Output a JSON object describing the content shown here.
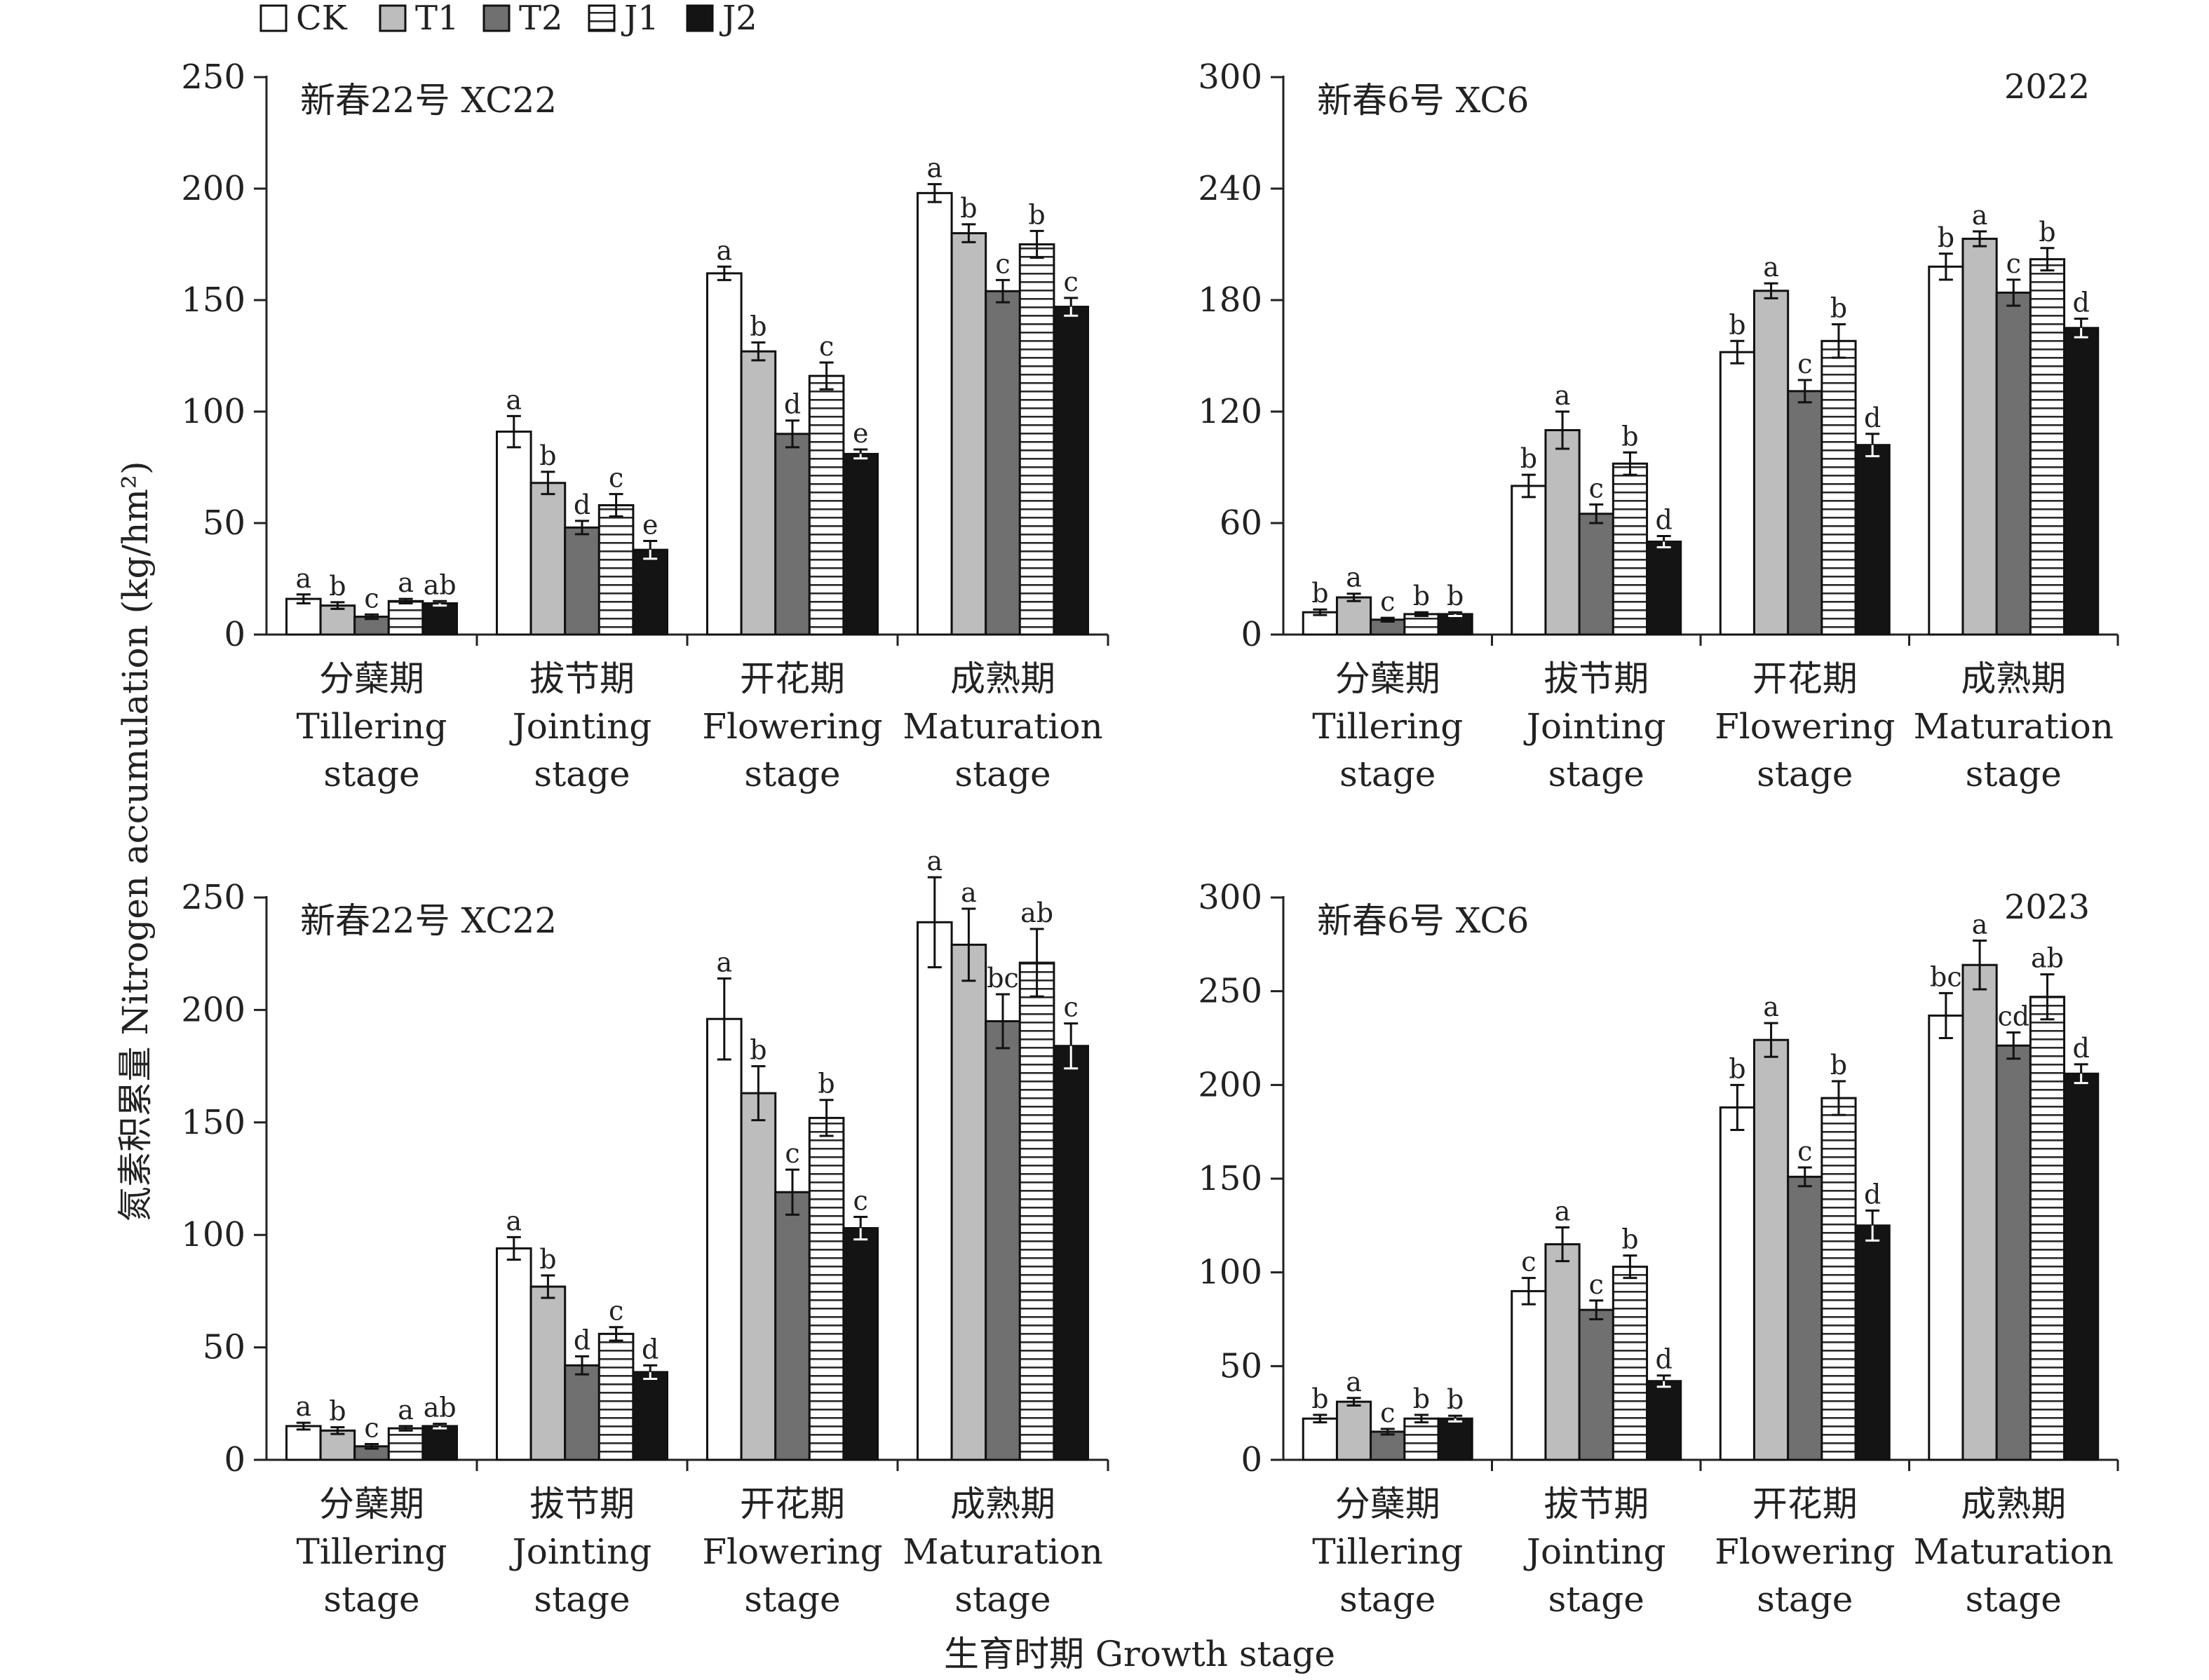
{
  "figure": {
    "ylabel": "氮素积累量 Nitrogen accumulation (kg/hm²)",
    "xlabel": "生育时期 Growth stage"
  },
  "legend": {
    "items": [
      {
        "label": "CK",
        "fill": "#ffffff",
        "pattern": "none"
      },
      {
        "label": "T1",
        "fill": "#bdbdbd",
        "pattern": "none"
      },
      {
        "label": "T2",
        "fill": "#707070",
        "pattern": "none"
      },
      {
        "label": "J1",
        "fill": "#ffffff",
        "pattern": "horizontal-stripes"
      },
      {
        "label": "J2",
        "fill": "#141414",
        "pattern": "none"
      }
    ]
  },
  "chart_data": [
    {
      "type": "bar",
      "panel_label": "新春22号 XC22",
      "year_label": "",
      "ylim": [
        0,
        250
      ],
      "yticks": [
        0,
        50,
        100,
        150,
        200,
        250
      ],
      "categories": [
        [
          "分蘖期",
          "Tillering",
          "stage"
        ],
        [
          "拔节期",
          "Jointing",
          "stage"
        ],
        [
          "开花期",
          "Flowering",
          "stage"
        ],
        [
          "成熟期",
          "Maturation",
          "stage"
        ]
      ],
      "series": [
        {
          "name": "CK",
          "values": [
            16,
            91,
            162,
            198
          ],
          "errors": [
            2,
            7,
            3,
            4
          ],
          "letters": [
            "a",
            "a",
            "a",
            "a"
          ]
        },
        {
          "name": "T1",
          "values": [
            13,
            68,
            127,
            180
          ],
          "errors": [
            1.5,
            5,
            4,
            4
          ],
          "letters": [
            "b",
            "b",
            "b",
            "b"
          ]
        },
        {
          "name": "T2",
          "values": [
            8,
            48,
            90,
            154
          ],
          "errors": [
            1,
            3,
            6,
            5
          ],
          "letters": [
            "c",
            "d",
            "d",
            "c"
          ]
        },
        {
          "name": "J1",
          "values": [
            15,
            58,
            116,
            175
          ],
          "errors": [
            1,
            5,
            6,
            6
          ],
          "letters": [
            "a",
            "c",
            "c",
            "b"
          ]
        },
        {
          "name": "J2",
          "values": [
            14,
            38,
            81,
            147
          ],
          "errors": [
            1,
            4,
            2,
            4
          ],
          "letters": [
            "ab",
            "e",
            "e",
            "c"
          ]
        }
      ]
    },
    {
      "type": "bar",
      "panel_label": "新春6号 XC6",
      "year_label": "2022",
      "ylim": [
        0,
        300
      ],
      "yticks": [
        0,
        60,
        120,
        180,
        240,
        300
      ],
      "categories": [
        [
          "分蘖期",
          "Tillering",
          "stage"
        ],
        [
          "拔节期",
          "Jointing",
          "stage"
        ],
        [
          "开花期",
          "Flowering",
          "stage"
        ],
        [
          "成熟期",
          "Maturation",
          "stage"
        ]
      ],
      "series": [
        {
          "name": "CK",
          "values": [
            12,
            80,
            152,
            198
          ],
          "errors": [
            1.5,
            6,
            6,
            7
          ],
          "letters": [
            "b",
            "b",
            "b",
            "b"
          ]
        },
        {
          "name": "T1",
          "values": [
            20,
            110,
            185,
            213
          ],
          "errors": [
            2,
            10,
            4,
            4
          ],
          "letters": [
            "a",
            "a",
            "a",
            "a"
          ]
        },
        {
          "name": "T2",
          "values": [
            8,
            65,
            131,
            184
          ],
          "errors": [
            1,
            5,
            6,
            7
          ],
          "letters": [
            "c",
            "c",
            "c",
            "c"
          ]
        },
        {
          "name": "J1",
          "values": [
            11,
            92,
            158,
            202
          ],
          "errors": [
            1,
            6,
            9,
            6
          ],
          "letters": [
            "b",
            "b",
            "b",
            "b"
          ]
        },
        {
          "name": "J2",
          "values": [
            11,
            50,
            102,
            165
          ],
          "errors": [
            1,
            3,
            6,
            5
          ],
          "letters": [
            "b",
            "d",
            "d",
            "d"
          ]
        }
      ]
    },
    {
      "type": "bar",
      "panel_label": "新春22号 XC22",
      "year_label": "",
      "ylim": [
        0,
        250
      ],
      "yticks": [
        0,
        50,
        100,
        150,
        200,
        250
      ],
      "categories": [
        [
          "分蘖期",
          "Tillering",
          "stage"
        ],
        [
          "拔节期",
          "Jointing",
          "stage"
        ],
        [
          "开花期",
          "Flowering",
          "stage"
        ],
        [
          "成熟期",
          "Maturation",
          "stage"
        ]
      ],
      "series": [
        {
          "name": "CK",
          "values": [
            15,
            94,
            196,
            239
          ],
          "errors": [
            1.5,
            5,
            18,
            20
          ],
          "letters": [
            "a",
            "a",
            "a",
            "a"
          ]
        },
        {
          "name": "T1",
          "values": [
            13,
            77,
            163,
            229
          ],
          "errors": [
            1.5,
            5,
            12,
            16
          ],
          "letters": [
            "b",
            "b",
            "b",
            "a"
          ]
        },
        {
          "name": "T2",
          "values": [
            6,
            42,
            119,
            195
          ],
          "errors": [
            1,
            4,
            10,
            12
          ],
          "letters": [
            "c",
            "d",
            "c",
            "bc"
          ]
        },
        {
          "name": "J1",
          "values": [
            14,
            56,
            152,
            221
          ],
          "errors": [
            1,
            3,
            8,
            15
          ],
          "letters": [
            "a",
            "c",
            "b",
            "ab"
          ]
        },
        {
          "name": "J2",
          "values": [
            15,
            39,
            103,
            184
          ],
          "errors": [
            1,
            3,
            5,
            10
          ],
          "letters": [
            "ab",
            "d",
            "c",
            "c"
          ]
        }
      ]
    },
    {
      "type": "bar",
      "panel_label": "新春6号 XC6",
      "year_label": "2023",
      "ylim": [
        0,
        300
      ],
      "yticks": [
        0,
        50,
        100,
        150,
        200,
        250,
        300
      ],
      "categories": [
        [
          "分蘖期",
          "Tillering",
          "stage"
        ],
        [
          "拔节期",
          "Jointing",
          "stage"
        ],
        [
          "开花期",
          "Flowering",
          "stage"
        ],
        [
          "成熟期",
          "Maturation",
          "stage"
        ]
      ],
      "series": [
        {
          "name": "CK",
          "values": [
            22,
            90,
            188,
            237
          ],
          "errors": [
            2,
            7,
            12,
            12
          ],
          "letters": [
            "b",
            "c",
            "b",
            "bc"
          ]
        },
        {
          "name": "T1",
          "values": [
            31,
            115,
            224,
            264
          ],
          "errors": [
            2,
            9,
            9,
            13
          ],
          "letters": [
            "a",
            "a",
            "a",
            "a"
          ]
        },
        {
          "name": "T2",
          "values": [
            15,
            80,
            151,
            221
          ],
          "errors": [
            1.5,
            5,
            5,
            7
          ],
          "letters": [
            "c",
            "c",
            "c",
            "cd"
          ]
        },
        {
          "name": "J1",
          "values": [
            22,
            103,
            193,
            247
          ],
          "errors": [
            2,
            6,
            9,
            12
          ],
          "letters": [
            "b",
            "b",
            "b",
            "ab"
          ]
        },
        {
          "name": "J2",
          "values": [
            22,
            42,
            125,
            206
          ],
          "errors": [
            1.5,
            3,
            8,
            5
          ],
          "letters": [
            "b",
            "d",
            "d",
            "d"
          ]
        }
      ]
    }
  ]
}
